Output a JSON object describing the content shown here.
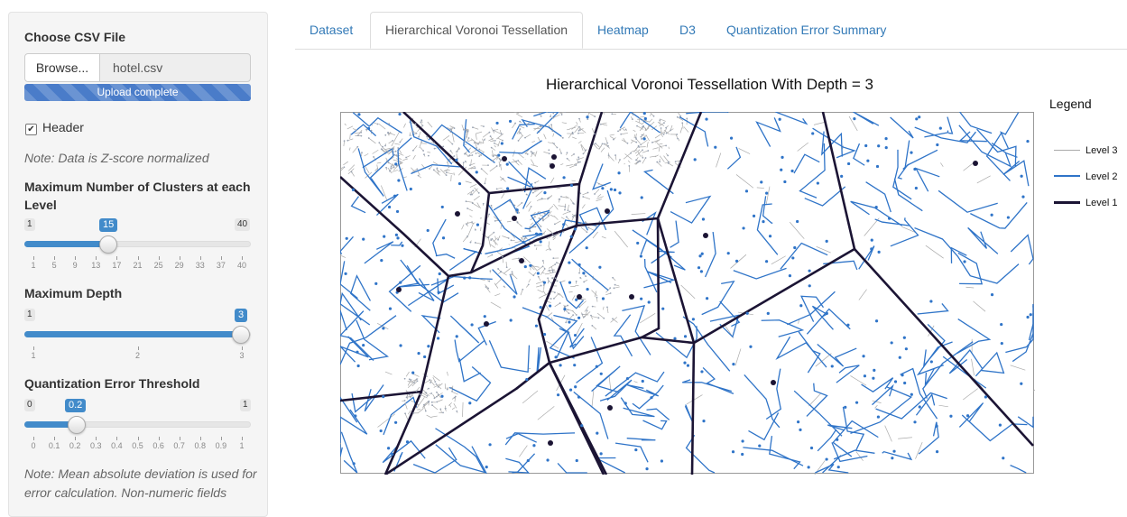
{
  "sidebar": {
    "file_label": "Choose CSV File",
    "browse_label": "Browse...",
    "file_name": "hotel.csv",
    "upload_status": "Upload complete",
    "header_label": "Header",
    "header_checked": true,
    "note_zscore": "Note: Data is Z-score normalized",
    "clusters": {
      "label": "Maximum Number of Clusters at each Level",
      "min": "1",
      "max": "40",
      "value": "15",
      "ticks": [
        "1",
        "5",
        "9",
        "13",
        "17",
        "21",
        "25",
        "29",
        "33",
        "37",
        "40"
      ]
    },
    "depth": {
      "label": "Maximum Depth",
      "min": "1",
      "max": "3",
      "value": "3",
      "ticks": [
        "1",
        "2",
        "3"
      ]
    },
    "qe": {
      "label": "Quantization Error Threshold",
      "min": "0",
      "max": "1",
      "value": "0.2",
      "ticks": [
        "0",
        "0.1",
        "0.2",
        "0.3",
        "0.4",
        "0.5",
        "0.6",
        "0.7",
        "0.8",
        "0.9",
        "1"
      ]
    },
    "note_error": "Note: Mean absolute deviation is used for error calculation. Non-numeric fields"
  },
  "tabs": [
    {
      "label": "Dataset",
      "active": false
    },
    {
      "label": "Hierarchical Voronoi Tessellation",
      "active": true
    },
    {
      "label": "Heatmap",
      "active": false
    },
    {
      "label": "D3",
      "active": false
    },
    {
      "label": "Quantization Error Summary",
      "active": false
    }
  ],
  "plot": {
    "title": "Hierarchical Voronoi Tessellation With Depth =  3",
    "legend_title": "Legend",
    "legend": [
      {
        "label": "Level 3",
        "color": "#aaaaaa"
      },
      {
        "label": "Level 2",
        "color": "#2f74c8"
      },
      {
        "label": "Level 1",
        "color": "#1b1434"
      }
    ],
    "colors": {
      "level1": "#1b1434",
      "level2": "#2f74c8",
      "level3": "#aaaaaa",
      "accent": "#428bca"
    }
  }
}
